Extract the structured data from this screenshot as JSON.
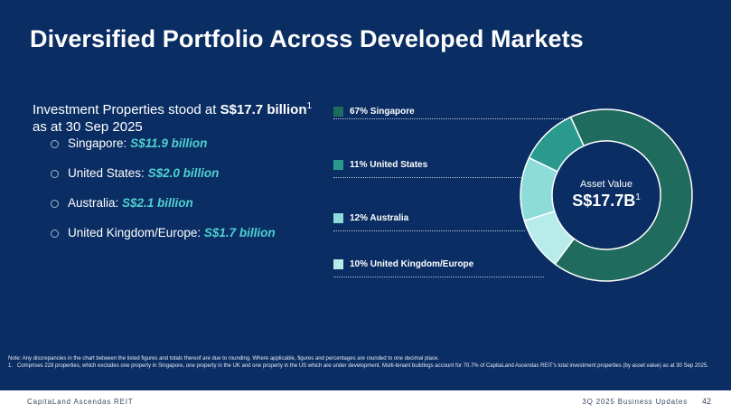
{
  "title": "Diversified Portfolio Across Developed Markets",
  "intro": {
    "prefix": "Investment Properties stood at ",
    "total": "S$17.7 billion",
    "footnote_ref": "1",
    "suffix": "as at 30 Sep 2025"
  },
  "bullets": [
    {
      "label": "Singapore: ",
      "value": "S$11.9 billion"
    },
    {
      "label": "United States: ",
      "value": "S$2.0 billion"
    },
    {
      "label": "Australia: ",
      "value": "S$2.1 billion"
    },
    {
      "label": "United Kingdom/Europe: ",
      "value": "S$1.7 billion"
    }
  ],
  "chart_data": {
    "type": "pie",
    "style": "donut",
    "categories": [
      "Singapore",
      "United States",
      "Australia",
      "United Kingdom/Europe"
    ],
    "values": [
      67,
      11,
      12,
      10
    ],
    "colors": [
      "#1f6b5e",
      "#2a9a8f",
      "#8ddcd9",
      "#b7ecea"
    ],
    "legend": [
      "67% Singapore",
      "11% United States",
      "12% Australia",
      "10% United Kingdom/Europe"
    ],
    "center_label": "Asset Value",
    "center_value": "S$17.7B",
    "center_footnote_ref": "1"
  },
  "notes": {
    "note": "Note: Any discrepancies in the chart between the listed figures and totals thereof are due to rounding. Where applicable, figures and percentages are rounded to one decimal place.",
    "footnote1": "1.   Comprises 228 properties, which excludes one property in Singapore, one property in the UK and one property in the US which are under development. Multi-tenant buildings account for 70.7% of CapitaLand Ascendas REIT's total investment properties (by asset value) as at 30 Sep 2025."
  },
  "footer": {
    "company": "CapitaLand Ascendas REIT",
    "section": "3Q 2025 Business Updates",
    "page": "42"
  }
}
